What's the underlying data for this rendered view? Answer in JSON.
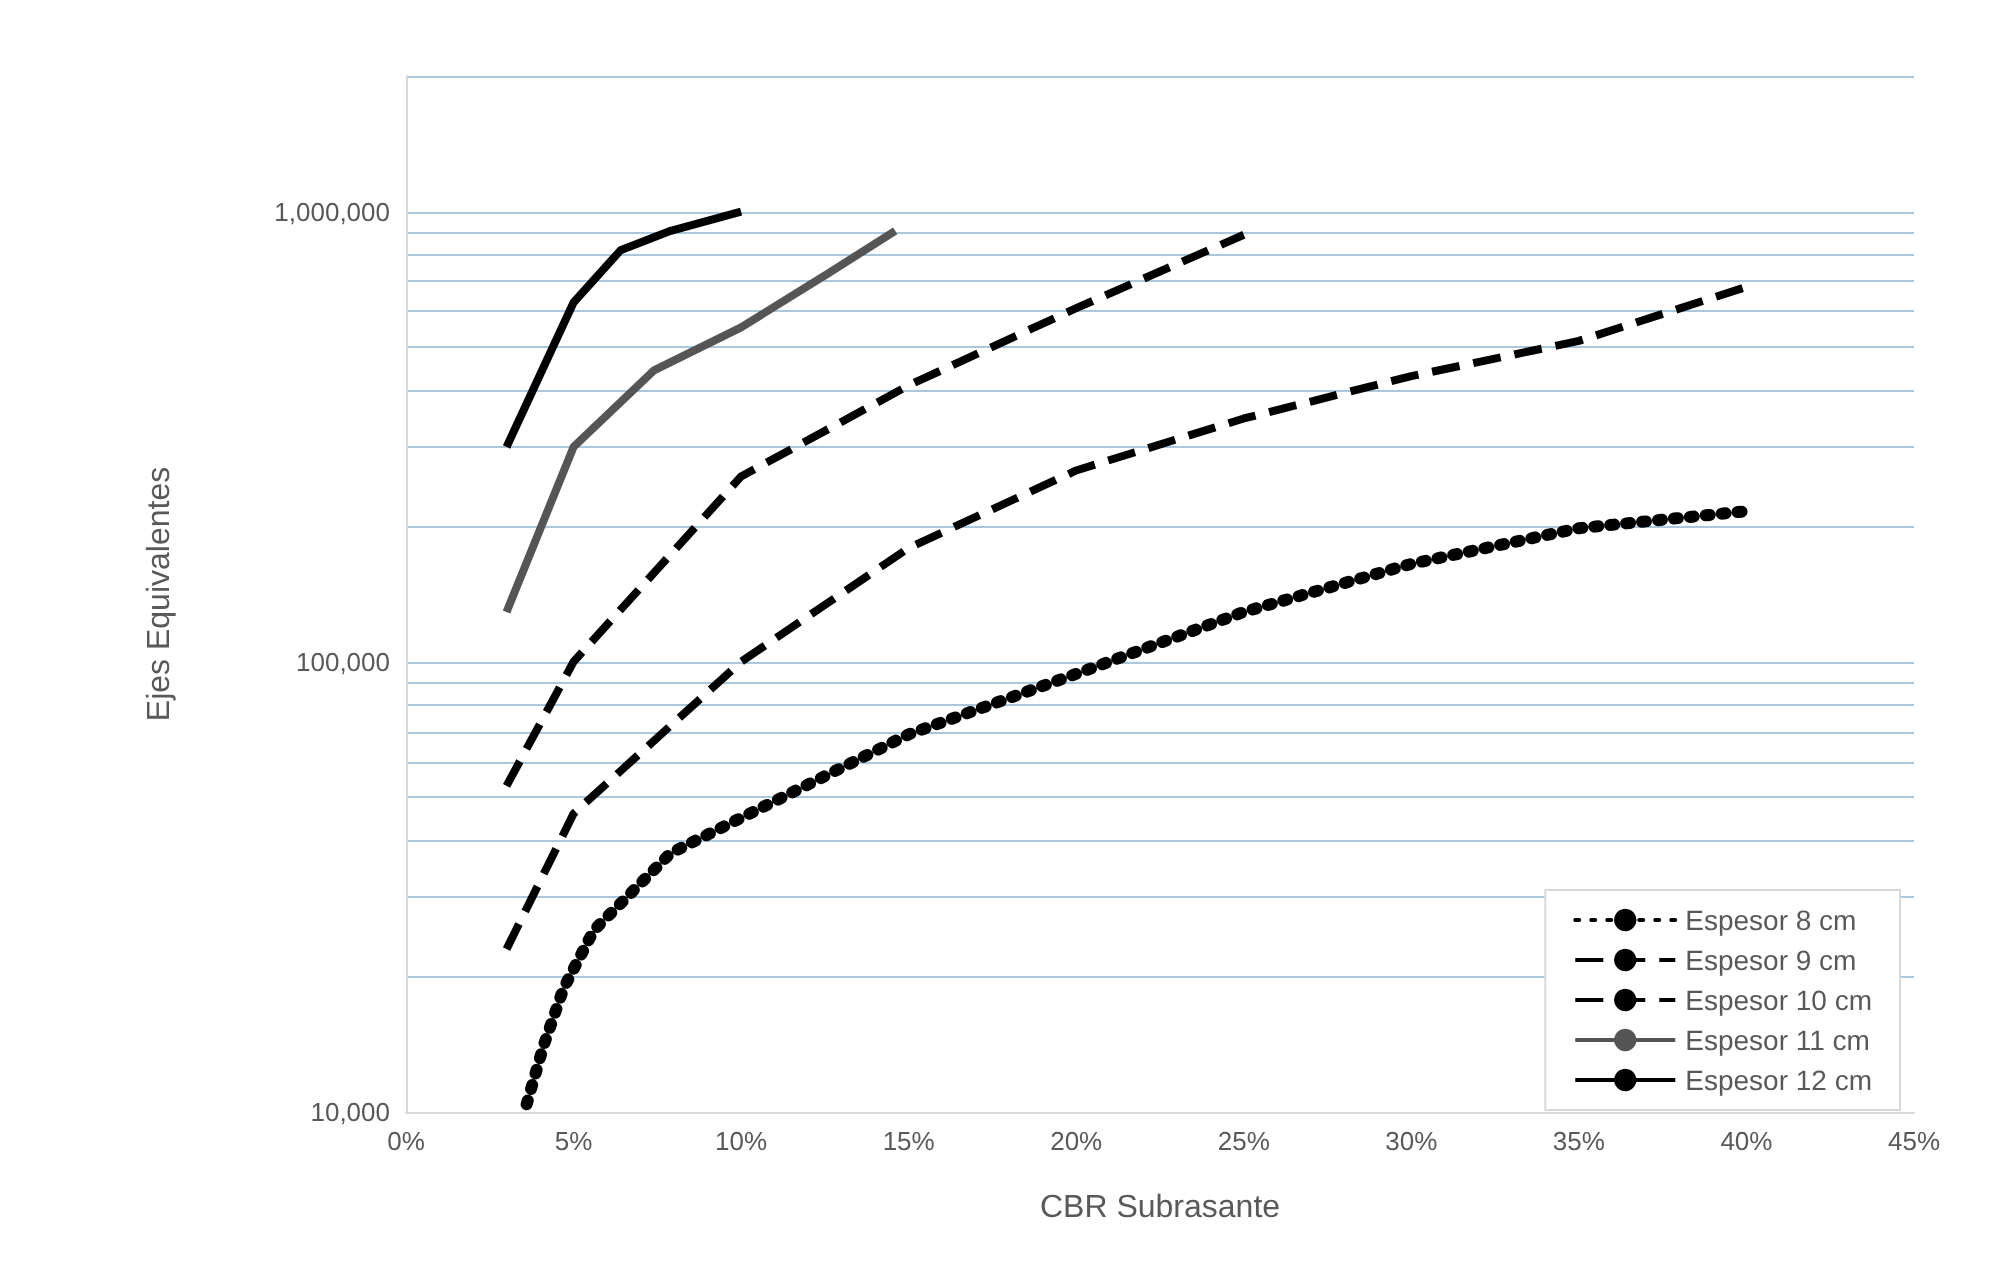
{
  "chart_data": {
    "type": "line",
    "xlabel": "CBR Subrasante",
    "ylabel": "Ejes Equivalentes",
    "log": "y",
    "grid": "y",
    "legend": "bottom right",
    "marker": "none",
    "xlim": [
      0,
      45
    ],
    "xticks": [
      {
        "value": 0,
        "label": "0%"
      },
      {
        "value": 5,
        "label": "5%"
      },
      {
        "value": 10,
        "label": "10%"
      },
      {
        "value": 15,
        "label": "15%"
      },
      {
        "value": 20,
        "label": "20%"
      },
      {
        "value": 25,
        "label": "25%"
      },
      {
        "value": 30,
        "label": "30%"
      },
      {
        "value": 35,
        "label": "35%"
      },
      {
        "value": 40,
        "label": "40%"
      },
      {
        "value": 45,
        "label": "45%"
      }
    ],
    "ylim": [
      10000,
      2000000
    ],
    "yticks": [
      {
        "value": 10000,
        "label": "10,000"
      },
      {
        "value": 20000,
        "label": null
      },
      {
        "value": 30000,
        "label": null
      },
      {
        "value": 40000,
        "label": null
      },
      {
        "value": 50000,
        "label": null
      },
      {
        "value": 60000,
        "label": null
      },
      {
        "value": 70000,
        "label": null
      },
      {
        "value": 80000,
        "label": null
      },
      {
        "value": 90000,
        "label": null
      },
      {
        "value": 100000,
        "label": "100,000"
      },
      {
        "value": 200000,
        "label": null
      },
      {
        "value": 300000,
        "label": null
      },
      {
        "value": 400000,
        "label": null
      },
      {
        "value": 500000,
        "label": null
      },
      {
        "value": 600000,
        "label": null
      },
      {
        "value": 700000,
        "label": null
      },
      {
        "value": 800000,
        "label": null
      },
      {
        "value": 900000,
        "label": null
      },
      {
        "value": 1000000,
        "label": "1,000,000"
      },
      {
        "value": 2000000,
        "label": null
      }
    ],
    "series": [
      {
        "name": "Espesor 8 cm",
        "color": "#000000",
        "line_style": "dotted",
        "x": [
          3.6,
          4.1,
          4.7,
          5.6,
          7.9,
          10,
          15,
          20,
          25,
          30,
          35,
          40
        ],
        "values": [
          10400,
          14000,
          18800,
          25300,
          37600,
          45000,
          69000,
          94000,
          129000,
          165000,
          198000,
          216000
        ]
      },
      {
        "name": "Espesor 9 cm",
        "color": "#000000",
        "line_style": "dashed",
        "x": [
          3,
          5,
          10,
          15,
          20,
          25,
          30,
          35,
          40
        ],
        "values": [
          23000,
          46000,
          100000,
          179000,
          266000,
          347000,
          431000,
          516000,
          680000
        ]
      },
      {
        "name": "Espesor 10 cm",
        "color": "#000000",
        "line_style": "dashed",
        "x": [
          3,
          5,
          10,
          15,
          20,
          25
        ],
        "values": [
          53000,
          100000,
          258000,
          411000,
          610000,
          888000
        ]
      },
      {
        "name": "Espesor 11 cm",
        "color": "#555555",
        "line_style": "solid",
        "x": [
          3,
          5,
          7.4,
          10,
          12.6,
          14.6
        ],
        "values": [
          129000,
          300000,
          444000,
          553000,
          729000,
          906000
        ]
      },
      {
        "name": "Espesor 12 cm",
        "color": "#000000",
        "line_style": "solid",
        "x": [
          3,
          5,
          6.4,
          7.9,
          10
        ],
        "values": [
          300000,
          628000,
          820000,
          906000,
          1000000
        ]
      }
    ]
  }
}
